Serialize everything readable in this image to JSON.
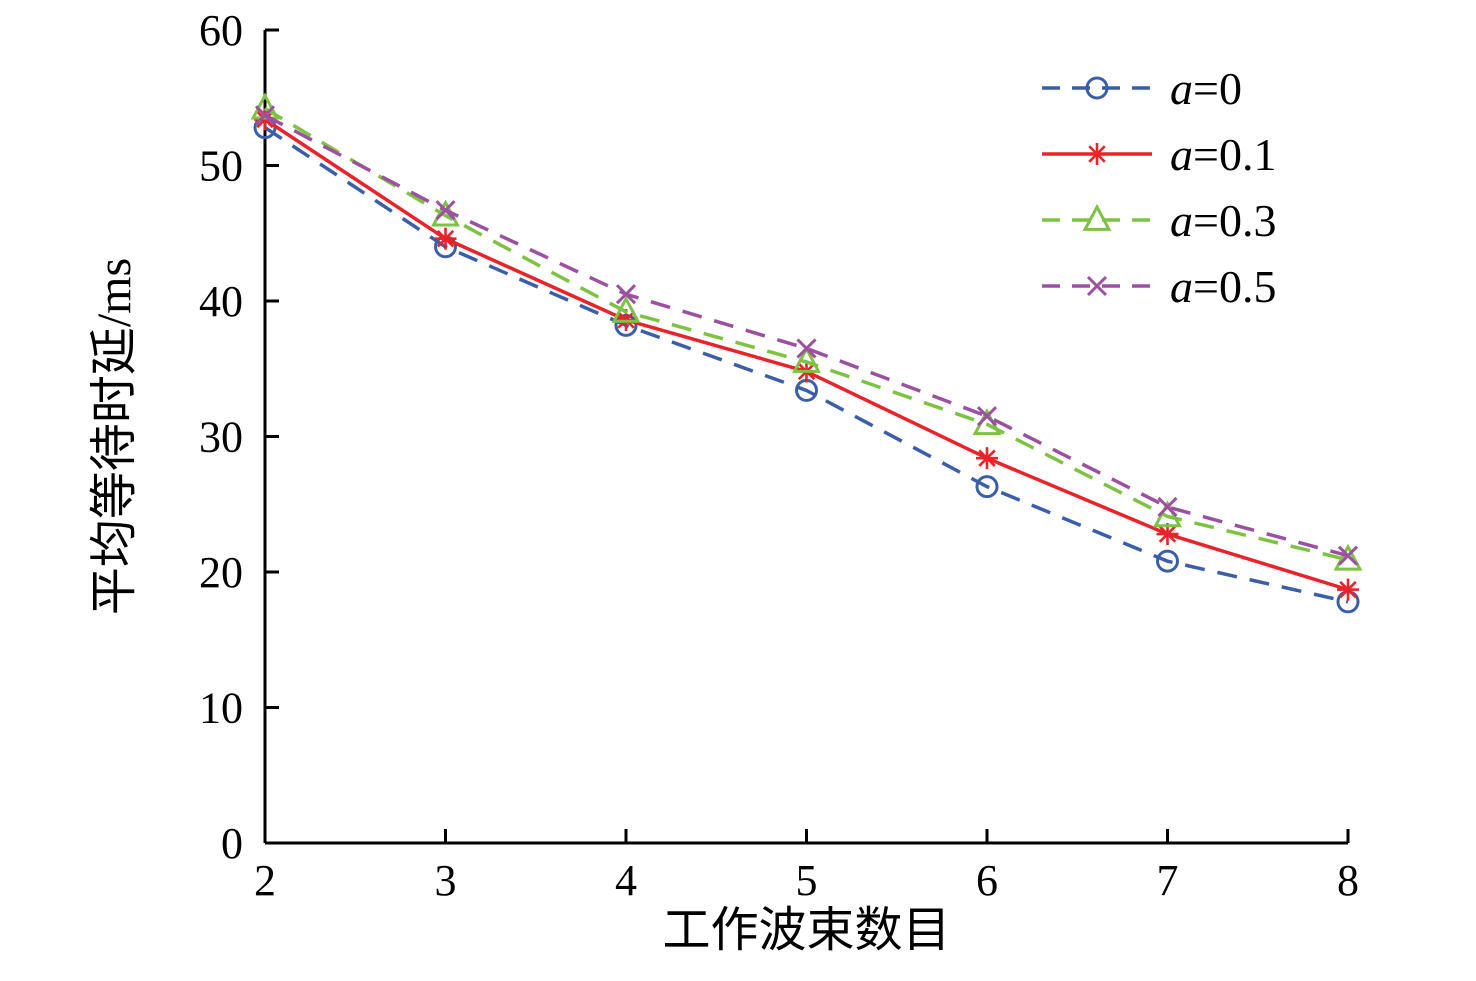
{
  "chart_data": {
    "type": "line",
    "title": "",
    "xlabel": "工作波束数目",
    "ylabel": "平均等待时延/ms",
    "xlim": [
      2,
      8
    ],
    "ylim": [
      0,
      60
    ],
    "x_ticks": [
      2,
      3,
      4,
      5,
      6,
      7,
      8
    ],
    "y_ticks": [
      0,
      10,
      20,
      30,
      40,
      50,
      60
    ],
    "grid": false,
    "legend_position": "top-right",
    "x": [
      2,
      3,
      4,
      5,
      6,
      7,
      8
    ],
    "series": [
      {
        "var": "a",
        "val": "=0",
        "color": "#3A5FA8",
        "line": "dashed",
        "marker": "circle",
        "values": [
          52.8,
          44.0,
          38.2,
          33.4,
          26.3,
          20.8,
          17.8
        ]
      },
      {
        "var": "a",
        "val": "=0.1",
        "color": "#E8232A",
        "line": "solid",
        "marker": "asterisk",
        "values": [
          53.4,
          44.6,
          38.6,
          34.8,
          28.4,
          22.8,
          18.7
        ]
      },
      {
        "var": "a",
        "val": "=0.3",
        "color": "#7DC243",
        "line": "dashed",
        "marker": "triangle",
        "values": [
          54.2,
          46.3,
          39.2,
          35.5,
          30.9,
          24.1,
          20.9
        ]
      },
      {
        "var": "a",
        "val": "=0.5",
        "color": "#9C50A0",
        "line": "dashed",
        "marker": "x",
        "values": [
          53.7,
          46.7,
          40.5,
          36.5,
          31.5,
          24.8,
          21.2
        ]
      }
    ],
    "axis_color": "#000000"
  }
}
